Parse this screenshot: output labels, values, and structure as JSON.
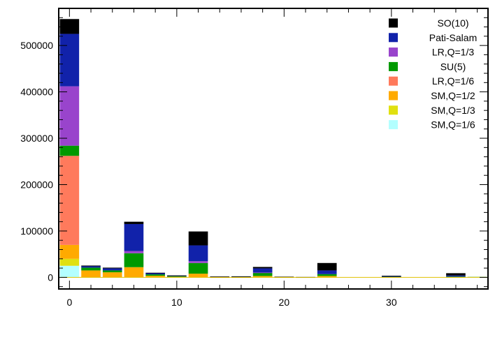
{
  "chart_data": {
    "type": "bar",
    "stacked": true,
    "title": "",
    "xlabel": "",
    "ylabel": "",
    "xlim": [
      -1,
      39
    ],
    "ylim": [
      -25000,
      580000
    ],
    "x_ticks": [
      0,
      10,
      20,
      30
    ],
    "x_tick_labels": [
      "0",
      "10",
      "20",
      "30"
    ],
    "y_ticks": [
      0,
      100000,
      200000,
      300000,
      400000,
      500000
    ],
    "y_tick_labels": [
      "0",
      "100000",
      "200000",
      "300000",
      "400000",
      "500000"
    ],
    "grid": false,
    "legend_position": "top-right",
    "x": [
      0,
      2,
      4,
      6,
      8,
      10,
      12,
      14,
      16,
      18,
      20,
      22,
      24,
      26,
      28,
      30,
      32,
      34,
      36,
      38
    ],
    "series": [
      {
        "name": "SM,Q=1/6",
        "color": "#b3ffff",
        "values": [
          25000,
          0,
          0,
          0,
          0,
          0,
          0,
          0,
          0,
          0,
          0,
          0,
          0,
          0,
          0,
          0,
          0,
          0,
          0,
          0
        ]
      },
      {
        "name": "SM,Q=1/3",
        "color": "#e0e010",
        "values": [
          15000,
          0,
          0,
          0,
          0,
          0,
          0,
          0,
          0,
          0,
          0,
          0,
          0,
          0,
          0,
          0,
          0,
          0,
          0,
          0
        ]
      },
      {
        "name": "SM,Q=1/2",
        "color": "#ffaa00",
        "values": [
          30000,
          15000,
          11000,
          22000,
          3500,
          1200,
          8000,
          400,
          400,
          3000,
          300,
          200,
          3000,
          0,
          0,
          400,
          0,
          0,
          600,
          0
        ]
      },
      {
        "name": "LR,Q=1/6",
        "color": "#ff7a5c",
        "values": [
          192000,
          0,
          0,
          0,
          0,
          0,
          0,
          0,
          0,
          0,
          0,
          0,
          0,
          0,
          0,
          0,
          0,
          0,
          0,
          0
        ]
      },
      {
        "name": "SU(5)",
        "color": "#009900",
        "values": [
          22000,
          6000,
          4000,
          30000,
          3000,
          1500,
          23000,
          700,
          900,
          7000,
          600,
          300,
          4000,
          0,
          0,
          800,
          0,
          0,
          1000,
          1000
        ]
      },
      {
        "name": "LR,Q=1/3",
        "color": "#9944cc",
        "values": [
          128000,
          0,
          0,
          5000,
          0,
          0,
          4000,
          0,
          0,
          500,
          0,
          0,
          0,
          0,
          0,
          0,
          0,
          0,
          0,
          0
        ]
      },
      {
        "name": "Pati-Salam",
        "color": "#1122aa",
        "values": [
          113000,
          3000,
          4500,
          58000,
          2500,
          1000,
          34000,
          500,
          700,
          9000,
          400,
          200,
          8000,
          0,
          0,
          1600,
          0,
          0,
          2400,
          0
        ]
      },
      {
        "name": "SO(10)",
        "color": "#000000",
        "values": [
          32000,
          1500,
          1500,
          5000,
          1000,
          600,
          30000,
          300,
          300,
          3000,
          200,
          100,
          16000,
          0,
          0,
          800,
          0,
          0,
          5000,
          0
        ]
      }
    ],
    "legend_order": [
      "SO(10)",
      "Pati-Salam",
      "LR,Q=1/3",
      "SU(5)",
      "LR,Q=1/6",
      "SM,Q=1/2",
      "SM,Q=1/3",
      "SM,Q=1/6"
    ]
  }
}
